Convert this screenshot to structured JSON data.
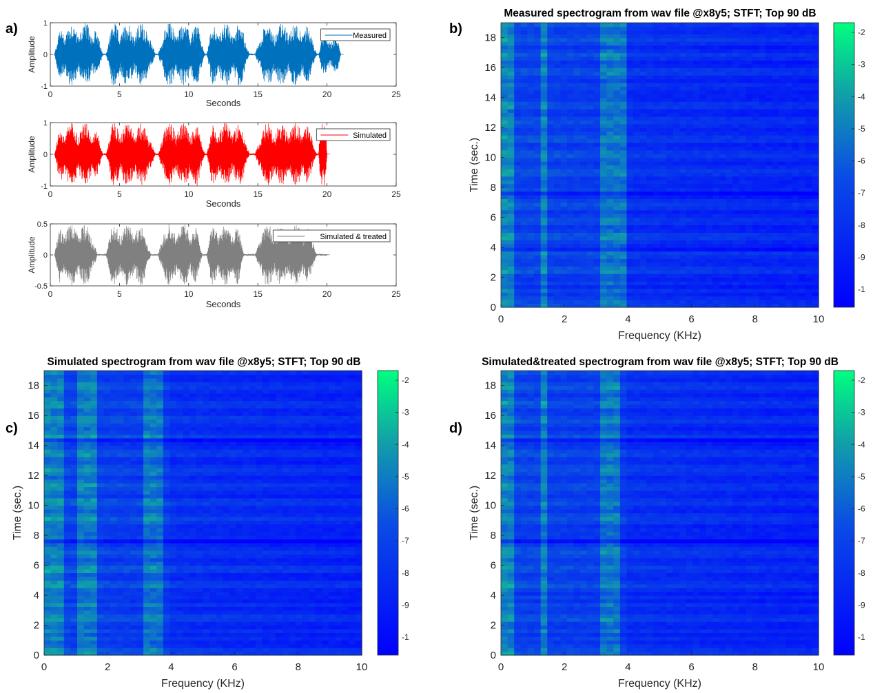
{
  "chart_data": [
    {
      "panel": "a)",
      "type": "line",
      "series": [
        {
          "name": "Measured",
          "color": "#0072BD"
        }
      ],
      "xlabel": "Seconds",
      "ylabel": "Amplitude",
      "xlim": [
        0,
        25
      ],
      "ylim": [
        -1,
        1
      ],
      "x_ticks": [
        0,
        5,
        10,
        15,
        20,
        25
      ],
      "y_ticks": [
        -1,
        0,
        1
      ],
      "signal_end_seconds": 21,
      "bursts": [
        [
          0.3,
          3.8
        ],
        [
          4.0,
          7.6
        ],
        [
          7.8,
          11.2
        ],
        [
          11.3,
          14.4
        ],
        [
          14.8,
          19.3
        ],
        [
          19.4,
          21.0
        ]
      ],
      "legend_location": "top-right"
    },
    {
      "panel": "",
      "type": "line",
      "series": [
        {
          "name": "Simulated",
          "color": "#FF0000"
        }
      ],
      "xlabel": "Seconds",
      "ylabel": "Amplitude",
      "xlim": [
        0,
        25
      ],
      "ylim": [
        -1,
        1
      ],
      "x_ticks": [
        0,
        5,
        10,
        15,
        20,
        25
      ],
      "y_ticks": [
        -1,
        0,
        1
      ],
      "signal_end_seconds": 20,
      "bursts": [
        [
          0.3,
          3.8
        ],
        [
          4.0,
          7.6
        ],
        [
          7.8,
          11.2
        ],
        [
          11.3,
          14.4
        ],
        [
          14.8,
          19.3
        ],
        [
          19.4,
          20.0
        ]
      ],
      "legend_location": "top-right"
    },
    {
      "panel": "",
      "type": "line",
      "series": [
        {
          "name": "Simulated & treated",
          "color": "#808080"
        }
      ],
      "xlabel": "Seconds",
      "ylabel": "Amplitude",
      "xlim": [
        0,
        25
      ],
      "ylim": [
        -0.5,
        0.5
      ],
      "x_ticks": [
        0,
        5,
        10,
        15,
        20,
        25
      ],
      "y_ticks": [
        -0.5,
        0,
        0.5
      ],
      "signal_end_seconds": 20,
      "bursts": [
        [
          0.3,
          3.4
        ],
        [
          4.0,
          7.3
        ],
        [
          7.8,
          11.0
        ],
        [
          11.3,
          14.0
        ],
        [
          14.8,
          19.3
        ]
      ],
      "legend_location": "top-right"
    },
    {
      "panel": "b)",
      "type": "heatmap",
      "title": "Measured spectrogram from wav file @x8y5; STFT; Top 90 dB",
      "xlabel": "Frequency (KHz)",
      "ylabel": "Time (sec.)",
      "xlim": [
        0,
        10
      ],
      "ylim": [
        0,
        19
      ],
      "x_ticks": [
        0,
        2,
        4,
        6,
        8,
        10
      ],
      "y_ticks": [
        0,
        2,
        4,
        6,
        8,
        10,
        12,
        14,
        16,
        18
      ],
      "colorbar_labels": [
        "-2",
        "-3",
        "-4",
        "-5",
        "-6",
        "-7",
        "-8",
        "-9",
        "-1"
      ],
      "colormap": [
        "#0000FF",
        "#0A4AE6",
        "#11A0A8",
        "#00FF7F"
      ],
      "dark_time_bands": [
        1.3,
        3.8,
        7.7,
        8.0,
        14.5
      ],
      "bright_freq_bands": [
        [
          0.0,
          0.5
        ],
        [
          1.2,
          1.5
        ],
        [
          3.2,
          3.9
        ]
      ]
    },
    {
      "panel": "c)",
      "type": "heatmap",
      "title": "Simulated spectrogram from wav file @x8y5; STFT; Top 90 dB",
      "xlabel": "Frequency (KHz)",
      "ylabel": "Time (sec.)",
      "xlim": [
        0,
        10
      ],
      "ylim": [
        0,
        19
      ],
      "x_ticks": [
        0,
        2,
        4,
        6,
        8,
        10
      ],
      "y_ticks": [
        0,
        2,
        4,
        6,
        8,
        10,
        12,
        14,
        16,
        18
      ],
      "colorbar_labels": [
        "-2",
        "-3",
        "-4",
        "-5",
        "-6",
        "-7",
        "-8",
        "-9",
        "-1"
      ],
      "colormap": [
        "#0000FF",
        "#0A4AE6",
        "#11A0A8",
        "#00FF7F"
      ],
      "dark_time_bands": [
        1.3,
        3.7,
        7.6,
        8.0,
        14.4
      ],
      "bright_freq_bands": [
        [
          0.0,
          0.6
        ],
        [
          1.0,
          1.6
        ],
        [
          3.2,
          3.8
        ]
      ]
    },
    {
      "panel": "d)",
      "type": "heatmap",
      "title": "Simulated&treated spectrogram from wav file @x8y5; STFT; Top 90 dB",
      "xlabel": "Frequency (KHz)",
      "ylabel": "Time (sec.)",
      "xlim": [
        0,
        10
      ],
      "ylim": [
        0,
        19
      ],
      "x_ticks": [
        0,
        2,
        4,
        6,
        8,
        10
      ],
      "y_ticks": [
        0,
        2,
        4,
        6,
        8,
        10,
        12,
        14,
        16,
        18
      ],
      "colorbar_labels": [
        "-2",
        "-3",
        "-4",
        "-5",
        "-6",
        "-7",
        "-8",
        "-9",
        "-1"
      ],
      "colormap": [
        "#0000FF",
        "#0A4AE6",
        "#11A0A8",
        "#00FF7F"
      ],
      "dark_time_bands": [
        1.3,
        3.7,
        7.6,
        8.0,
        14.4
      ],
      "bright_freq_bands": [
        [
          0.0,
          0.5
        ],
        [
          1.2,
          1.5
        ],
        [
          3.2,
          3.8
        ]
      ]
    }
  ]
}
